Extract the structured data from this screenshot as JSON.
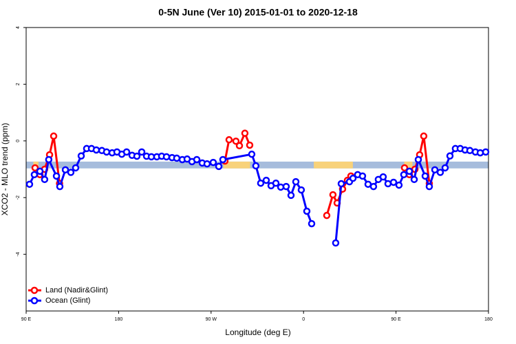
{
  "chart_data": {
    "type": "line",
    "title": "0-5N June (Ver 10)   2015-01-01 to 2020-12-18",
    "x_label": "Longitude (deg E)",
    "y_label": "XCO2 - MLO trend (ppm)",
    "xlim": [
      90,
      540
    ],
    "ylim": [
      -6,
      4
    ],
    "xticks": [
      {
        "value": 90,
        "label": "90 E"
      },
      {
        "value": 180,
        "label": "180"
      },
      {
        "value": 270,
        "label": "90 W"
      },
      {
        "value": 360,
        "label": "0"
      },
      {
        "value": 450,
        "label": "90 E"
      },
      {
        "value": 540,
        "label": "180"
      }
    ],
    "yticks": [
      4,
      2,
      0,
      -2,
      -4
    ],
    "legend": "bottom-left",
    "reference_band": {
      "ylim": [
        -0.97,
        -0.73
      ],
      "color": "#a6bcdc"
    },
    "highlight_bands": {
      "color": "#f8d27a",
      "ranges": [
        [
          97,
          102
        ],
        [
          282,
          308
        ],
        [
          370,
          408
        ],
        [
          458,
          466
        ]
      ]
    },
    "series": [
      {
        "name": "Land (Nadir&Glint)",
        "color": "#ff0000",
        "x": [
          98.7,
          103.4,
          108,
          112.8,
          116.8,
          122.5,
          null,
          283.5,
          287.5,
          294.2,
          297.6,
          302.9,
          307.6,
          null,
          382.6,
          388.6,
          392.7,
          398,
          402.7,
          406.1,
          null,
          458.3,
          463,
          468.4,
          473,
          477,
          482.4
        ],
        "values": [
          -0.95,
          -1.19,
          -1.0,
          -0.49,
          0.17,
          -1.5,
          null,
          -0.71,
          0.04,
          -0.01,
          -0.17,
          0.27,
          -0.15,
          null,
          -2.63,
          -1.9,
          -2.19,
          -1.7,
          -1.39,
          -1.24,
          null,
          -0.95,
          -1.19,
          -1.0,
          -0.49,
          0.17,
          -1.5
        ]
      },
      {
        "name": "Ocean (Glint)",
        "color": "#0000ff",
        "x": [
          93.3,
          98,
          103.4,
          108,
          112,
          119.5,
          122.8,
          128.2,
          133.5,
          138.2,
          143.6,
          148.9,
          153.6,
          158.3,
          163.7,
          168.3,
          173.7,
          178.4,
          183.1,
          187.8,
          193.1,
          197.8,
          202.5,
          207.2,
          211.9,
          217.2,
          221.9,
          226.6,
          232,
          236.6,
          242,
          246.7,
          251.4,
          256.1,
          261.4,
          266.1,
          272.1,
          277.5,
          281.5,
          309.6,
          313.6,
          318.3,
          323.7,
          328.4,
          333.1,
          337.8,
          343.1,
          347.8,
          352.5,
          357.8,
          363.2,
          367.9,
          null,
          391.3,
          396.7,
          404.7,
          408.1,
          412.7,
          417.4,
          422.8,
          428.1,
          432.8,
          437.5,
          442.2,
          447.6,
          452.9,
          457.6,
          463,
          467.7,
          471.7,
          478.4,
          482.4,
          487.8,
          493.1,
          497.8,
          502.5,
          507.8,
          512.5,
          517.2,
          521.9,
          527.3,
          532,
          537.3
        ],
        "values": [
          -1.53,
          -1.19,
          -1.07,
          -1.36,
          -0.66,
          -1.24,
          -1.61,
          -1.02,
          -1.11,
          -0.95,
          -0.53,
          -0.27,
          -0.27,
          -0.32,
          -0.34,
          -0.39,
          -0.42,
          -0.39,
          -0.47,
          -0.39,
          -0.51,
          -0.54,
          -0.39,
          -0.54,
          -0.56,
          -0.56,
          -0.54,
          -0.56,
          -0.59,
          -0.61,
          -0.66,
          -0.64,
          -0.73,
          -0.66,
          -0.78,
          -0.81,
          -0.76,
          -0.9,
          -0.66,
          -0.47,
          -0.88,
          -1.49,
          -1.39,
          -1.58,
          -1.49,
          -1.63,
          -1.61,
          -1.92,
          -1.44,
          -1.73,
          -2.48,
          -2.92,
          null,
          -3.6,
          -1.51,
          -1.44,
          -1.32,
          -1.19,
          -1.24,
          -1.53,
          -1.61,
          -1.36,
          -1.27,
          -1.51,
          -1.46,
          -1.56,
          -1.19,
          -1.07,
          -1.36,
          -0.66,
          -1.24,
          -1.61,
          -1.02,
          -1.11,
          -0.95,
          -0.53,
          -0.27,
          -0.27,
          -0.32,
          -0.34,
          -0.39,
          -0.42,
          -0.39
        ]
      }
    ]
  }
}
